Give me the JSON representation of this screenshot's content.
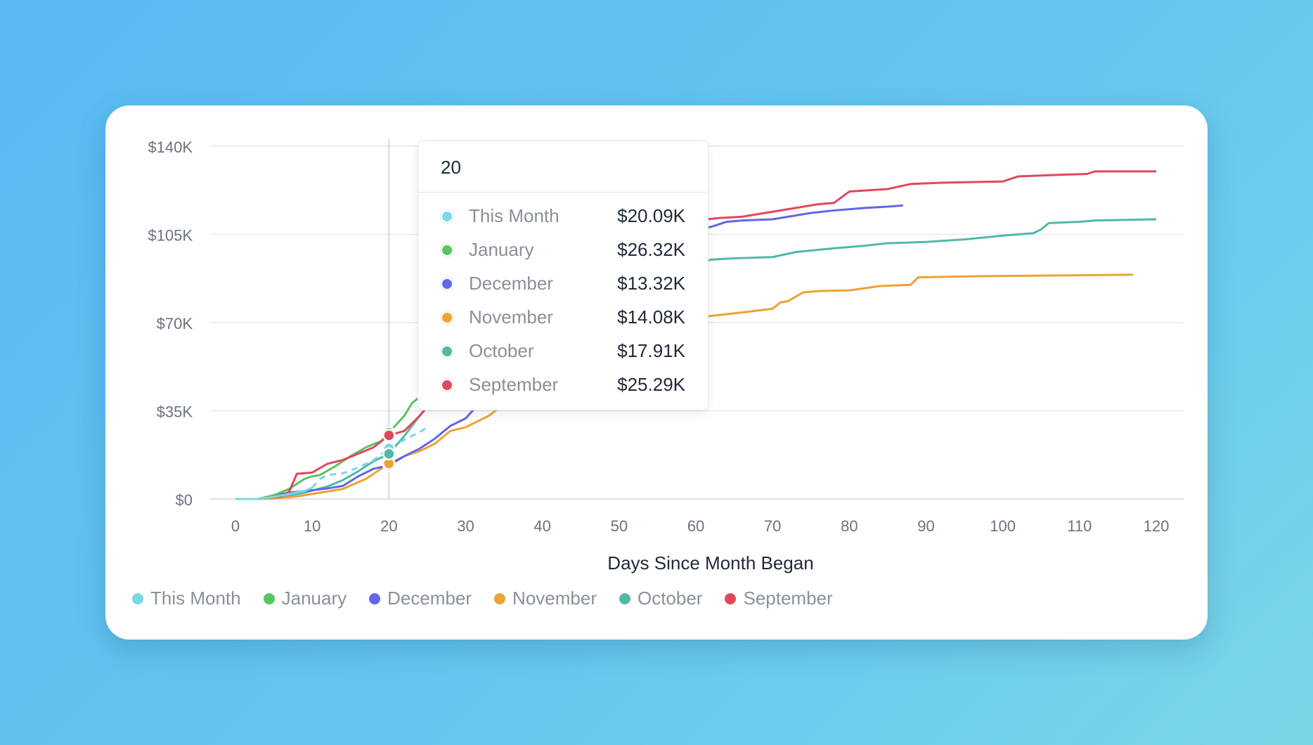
{
  "chart_data": {
    "type": "line",
    "xlabel": "Days Since Month Began",
    "ylabel": "",
    "xlim": [
      0,
      120
    ],
    "ylim": [
      0,
      140000
    ],
    "x_ticks": [
      "0",
      "10",
      "20",
      "30",
      "40",
      "50",
      "60",
      "70",
      "80",
      "90",
      "100",
      "110",
      "120"
    ],
    "y_ticks": [
      "$0",
      "$35K",
      "$70K",
      "$105K",
      "$140K"
    ],
    "grid": true,
    "legend_position": "bottom-left",
    "hover_x": 20,
    "series": [
      {
        "name": "This Month",
        "color": "#7dd8e3",
        "dashed_after": 10,
        "points": [
          [
            0,
            0
          ],
          [
            3,
            0
          ],
          [
            5,
            800
          ],
          [
            7,
            2000
          ],
          [
            9,
            3200
          ],
          [
            10,
            4500
          ],
          [
            11,
            8000
          ],
          [
            12,
            9500
          ],
          [
            14,
            10200
          ],
          [
            16,
            12500
          ],
          [
            18,
            15500
          ],
          [
            20,
            20090
          ],
          [
            22,
            23500
          ],
          [
            24,
            26500
          ],
          [
            25,
            28500
          ]
        ]
      },
      {
        "name": "January",
        "color": "#5bc35f",
        "points": [
          [
            0,
            0
          ],
          [
            3,
            0
          ],
          [
            5,
            1500
          ],
          [
            7,
            4000
          ],
          [
            9,
            8000
          ],
          [
            10,
            9000
          ],
          [
            11,
            9500
          ],
          [
            13,
            13000
          ],
          [
            15,
            17000
          ],
          [
            17,
            20500
          ],
          [
            19,
            23000
          ],
          [
            20,
            26320
          ],
          [
            22,
            33000
          ],
          [
            23,
            38000
          ],
          [
            24,
            40500
          ],
          [
            26,
            44000
          ],
          [
            28,
            47000
          ]
        ]
      },
      {
        "name": "December",
        "color": "#6366e8",
        "points": [
          [
            0,
            0
          ],
          [
            3,
            0
          ],
          [
            5,
            1500
          ],
          [
            7,
            2500
          ],
          [
            10,
            3500
          ],
          [
            12,
            4200
          ],
          [
            14,
            5200
          ],
          [
            16,
            9000
          ],
          [
            18,
            12000
          ],
          [
            20,
            13320
          ],
          [
            22,
            17000
          ],
          [
            24,
            20000
          ],
          [
            26,
            24000
          ],
          [
            28,
            29000
          ],
          [
            30,
            32000
          ],
          [
            33,
            42000
          ],
          [
            36,
            50000
          ],
          [
            40,
            62000
          ],
          [
            45,
            80000
          ],
          [
            50,
            95000
          ],
          [
            55,
            104000
          ],
          [
            60,
            107000
          ],
          [
            62,
            108000
          ],
          [
            64,
            110000
          ],
          [
            66,
            110500
          ],
          [
            70,
            111000
          ],
          [
            72,
            112000
          ],
          [
            75,
            113500
          ],
          [
            78,
            114500
          ],
          [
            82,
            115500
          ],
          [
            85,
            116000
          ],
          [
            87,
            116500
          ]
        ]
      },
      {
        "name": "November",
        "color": "#eea232",
        "points": [
          [
            0,
            0
          ],
          [
            3,
            0
          ],
          [
            5,
            200
          ],
          [
            8,
            1000
          ],
          [
            11,
            2500
          ],
          [
            14,
            4000
          ],
          [
            17,
            8000
          ],
          [
            20,
            14080
          ],
          [
            22,
            17000
          ],
          [
            24,
            19000
          ],
          [
            26,
            22000
          ],
          [
            28,
            27000
          ],
          [
            30,
            28500
          ],
          [
            33,
            33000
          ],
          [
            36,
            40000
          ],
          [
            40,
            48000
          ],
          [
            45,
            58000
          ],
          [
            50,
            66000
          ],
          [
            55,
            70000
          ],
          [
            60,
            72000
          ],
          [
            63,
            73000
          ],
          [
            66,
            74000
          ],
          [
            70,
            75500
          ],
          [
            71,
            78000
          ],
          [
            72,
            78500
          ],
          [
            74,
            82000
          ],
          [
            76,
            82500
          ],
          [
            80,
            82800
          ],
          [
            84,
            84500
          ],
          [
            88,
            85000
          ],
          [
            89,
            88000
          ],
          [
            95,
            88300
          ],
          [
            100,
            88500
          ],
          [
            110,
            88800
          ],
          [
            117,
            89000
          ]
        ]
      },
      {
        "name": "October",
        "color": "#4fb9a7",
        "points": [
          [
            0,
            0
          ],
          [
            3,
            0
          ],
          [
            6,
            800
          ],
          [
            9,
            2500
          ],
          [
            12,
            5000
          ],
          [
            14,
            7500
          ],
          [
            16,
            11000
          ],
          [
            18,
            15000
          ],
          [
            20,
            17910
          ],
          [
            22,
            25000
          ],
          [
            24,
            33000
          ],
          [
            26,
            40000
          ],
          [
            30,
            50000
          ],
          [
            35,
            62000
          ],
          [
            40,
            72000
          ],
          [
            45,
            82000
          ],
          [
            50,
            88000
          ],
          [
            55,
            91000
          ],
          [
            60,
            93000
          ],
          [
            62,
            95000
          ],
          [
            65,
            95500
          ],
          [
            70,
            96000
          ],
          [
            73,
            98000
          ],
          [
            78,
            99500
          ],
          [
            82,
            100500
          ],
          [
            85,
            101500
          ],
          [
            90,
            102000
          ],
          [
            95,
            103000
          ],
          [
            100,
            104500
          ],
          [
            104,
            105500
          ],
          [
            105,
            107000
          ],
          [
            106,
            109500
          ],
          [
            110,
            110000
          ],
          [
            112,
            110500
          ],
          [
            120,
            111000
          ]
        ]
      },
      {
        "name": "September",
        "color": "#e0485e",
        "points": [
          [
            0,
            0
          ],
          [
            3,
            0
          ],
          [
            6,
            1000
          ],
          [
            7,
            3000
          ],
          [
            8,
            10000
          ],
          [
            10,
            10500
          ],
          [
            12,
            14000
          ],
          [
            14,
            15500
          ],
          [
            16,
            18000
          ],
          [
            18,
            20500
          ],
          [
            20,
            25290
          ],
          [
            22,
            27000
          ],
          [
            24,
            33000
          ],
          [
            26,
            40000
          ],
          [
            30,
            52000
          ],
          [
            35,
            68000
          ],
          [
            40,
            82000
          ],
          [
            45,
            95000
          ],
          [
            50,
            104000
          ],
          [
            55,
            108000
          ],
          [
            60,
            110500
          ],
          [
            63,
            111500
          ],
          [
            66,
            112000
          ],
          [
            70,
            114000
          ],
          [
            73,
            115500
          ],
          [
            76,
            117000
          ],
          [
            78,
            117500
          ],
          [
            80,
            122000
          ],
          [
            85,
            123000
          ],
          [
            88,
            125000
          ],
          [
            92,
            125500
          ],
          [
            100,
            126000
          ],
          [
            102,
            128000
          ],
          [
            106,
            128500
          ],
          [
            111,
            129000
          ],
          [
            112,
            130000
          ],
          [
            120,
            130000
          ]
        ]
      }
    ]
  },
  "tooltip": {
    "title": "20",
    "rows": [
      {
        "label": "This Month",
        "value": "$20.09K",
        "color": "#7dd8e3"
      },
      {
        "label": "January",
        "value": "$26.32K",
        "color": "#5bc35f"
      },
      {
        "label": "December",
        "value": "$13.32K",
        "color": "#6366e8"
      },
      {
        "label": "November",
        "value": "$14.08K",
        "color": "#eea232"
      },
      {
        "label": "October",
        "value": "$17.91K",
        "color": "#4fb9a7"
      },
      {
        "label": "September",
        "value": "$25.29K",
        "color": "#e0485e"
      }
    ]
  },
  "legend": [
    {
      "label": "This Month",
      "color": "#7dd8e3"
    },
    {
      "label": "January",
      "color": "#5bc35f"
    },
    {
      "label": "December",
      "color": "#6366e8"
    },
    {
      "label": "November",
      "color": "#eea232"
    },
    {
      "label": "October",
      "color": "#4fb9a7"
    },
    {
      "label": "September",
      "color": "#e0485e"
    }
  ]
}
